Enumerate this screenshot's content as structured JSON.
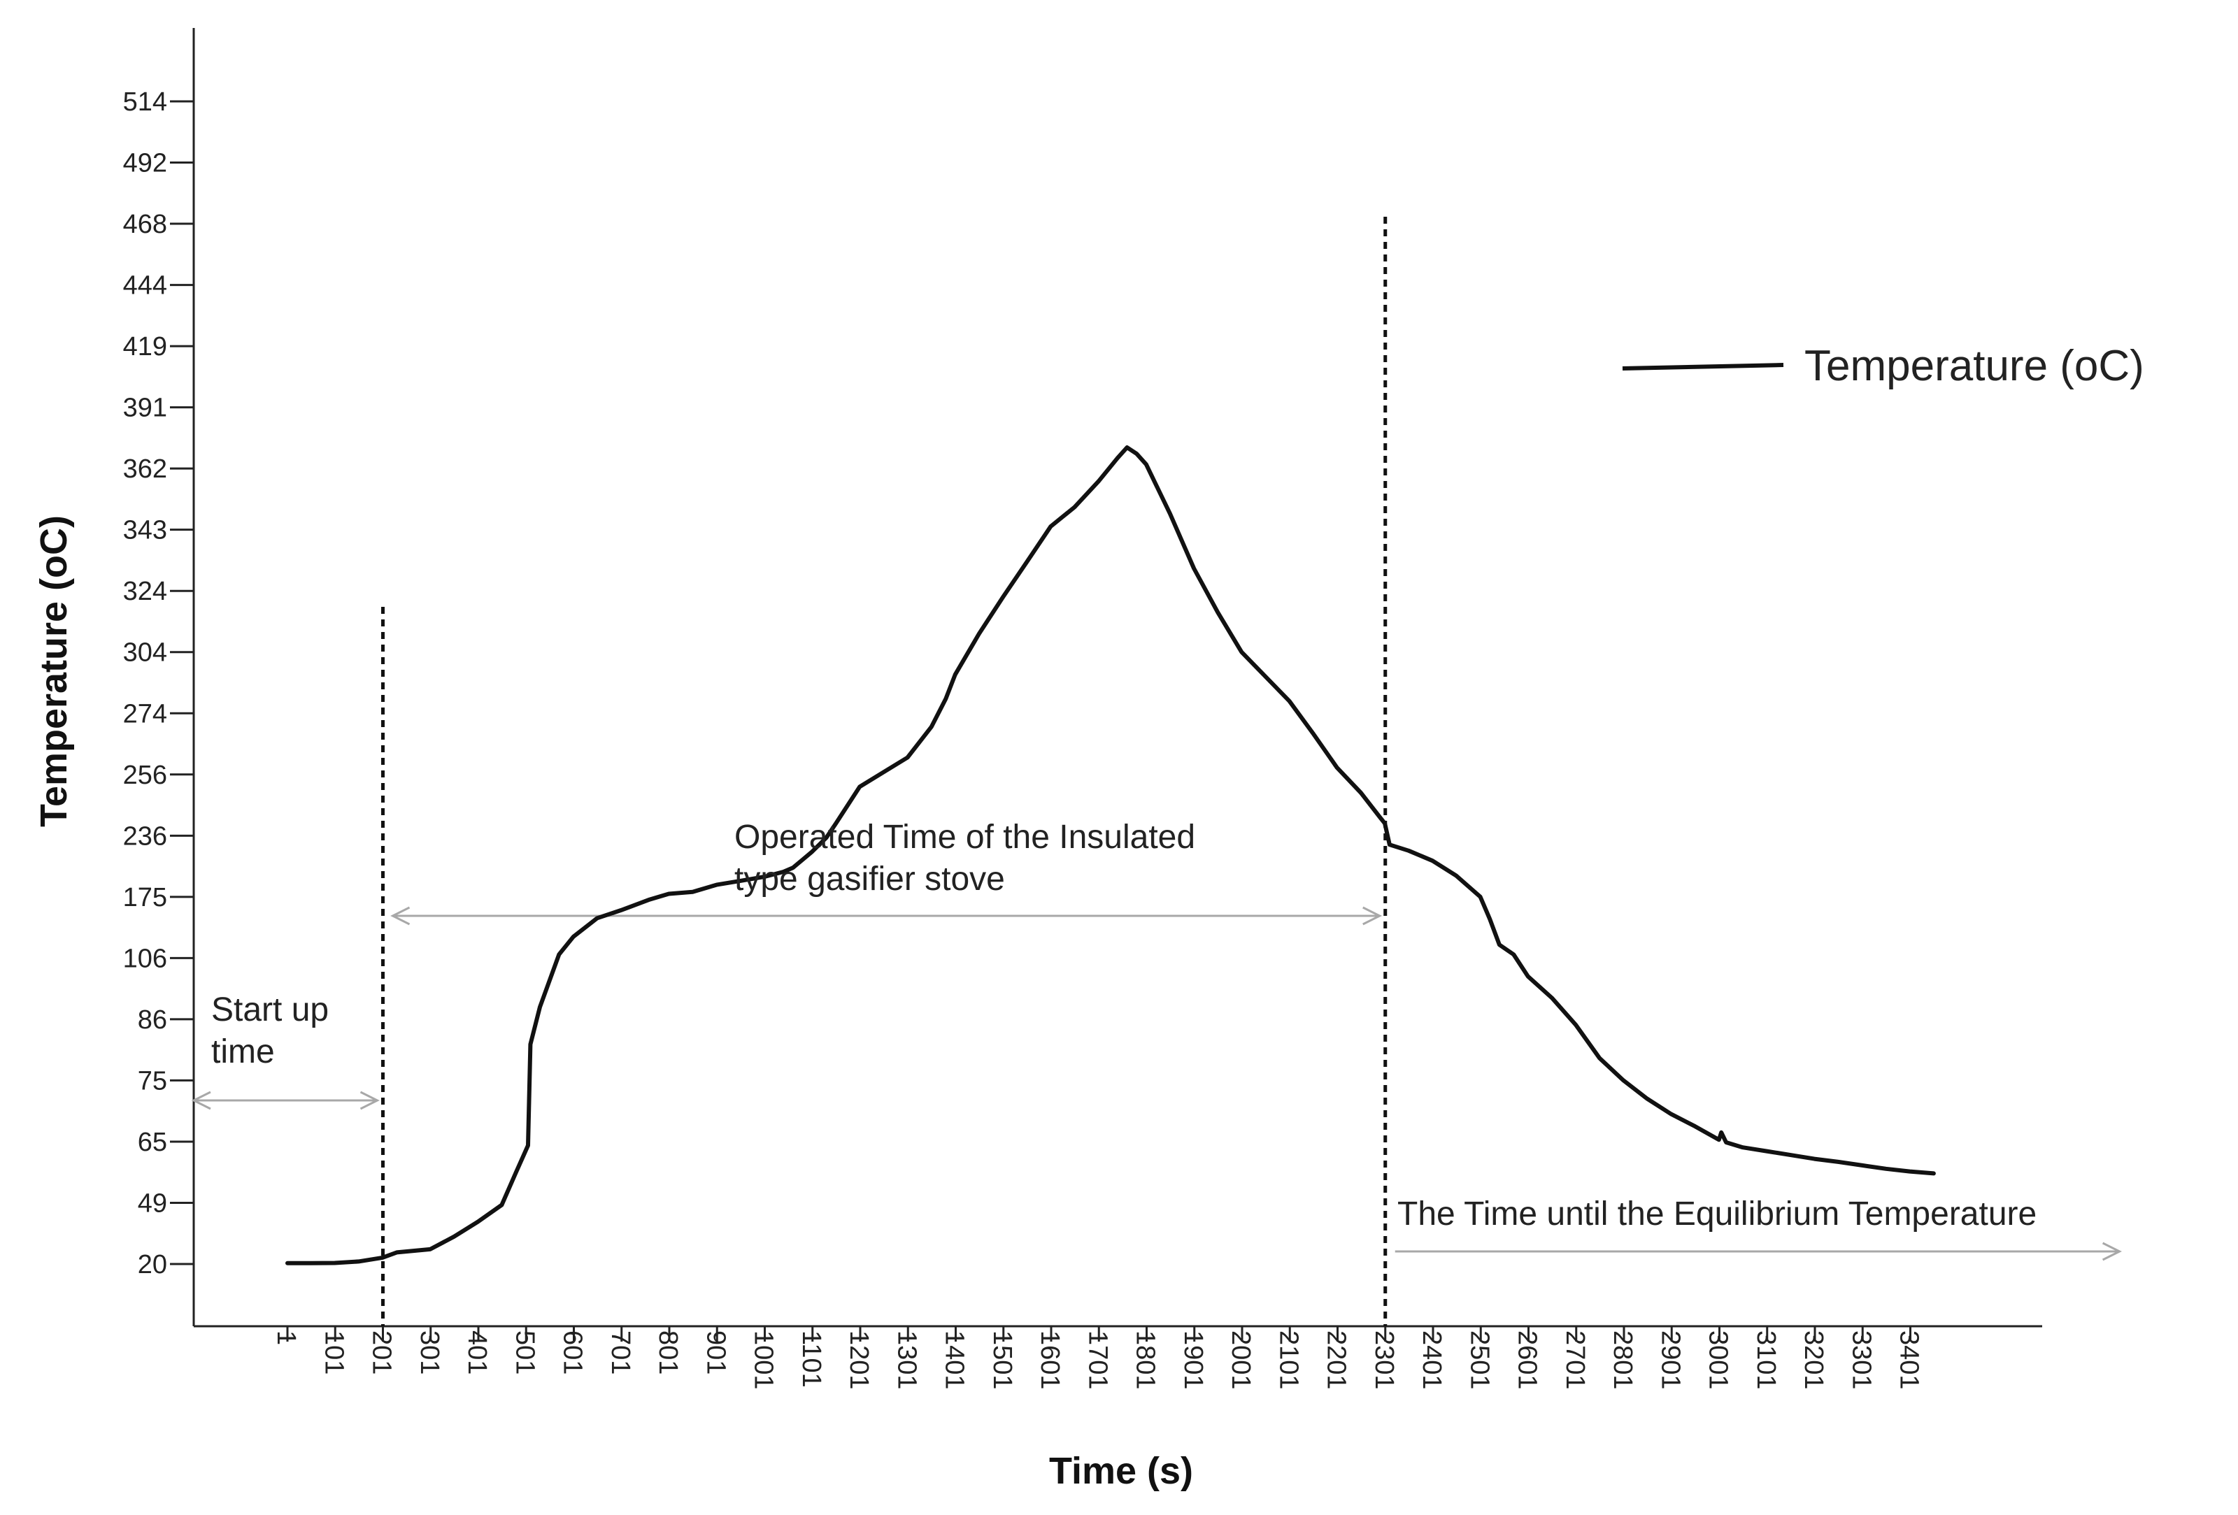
{
  "chart_data": {
    "type": "line",
    "title": "",
    "xlabel": "Time (s)",
    "ylabel": "Temperature (oC)",
    "x_ticks": [
      "1",
      "101",
      "201",
      "301",
      "401",
      "501",
      "601",
      "701",
      "801",
      "901",
      "1001",
      "1101",
      "1201",
      "1301",
      "1401",
      "1501",
      "1601",
      "1701",
      "1801",
      "1901",
      "2001",
      "2101",
      "2201",
      "2301",
      "2401",
      "2501",
      "2601",
      "2701",
      "2801",
      "2901",
      "3001",
      "3101",
      "3201",
      "3301",
      "3401"
    ],
    "y_ticks": [
      "20",
      "49",
      "65",
      "75",
      "86",
      "106",
      "175",
      "236",
      "256",
      "274",
      "304",
      "324",
      "343",
      "362",
      "391",
      "419",
      "444",
      "468",
      "492",
      "514"
    ],
    "xlim": [
      1,
      3601
    ],
    "legend": {
      "position": "right",
      "entries": [
        "Temperature (oC)"
      ]
    },
    "grid": false,
    "annotations": [
      {
        "text": [
          "Start up",
          "time"
        ],
        "from_x": 1,
        "to_x": 201
      },
      {
        "text": [
          "Operated Time of the Insulated",
          "type gasifier stove"
        ],
        "from_x": 201,
        "to_x": 2301
      },
      {
        "text": [
          "The Time until the Equilibrium Temperature"
        ],
        "from_x": 2301,
        "to_x": 3851
      }
    ],
    "reference_lines_x": [
      201,
      2301
    ],
    "series": [
      {
        "name": "Temperature (oC)",
        "color": "#111111",
        "x": [
          1,
          50,
          100,
          150,
          200,
          230,
          300,
          350,
          400,
          450,
          480,
          505,
          510,
          530,
          570,
          600,
          650,
          700,
          740,
          760,
          800,
          850,
          900,
          950,
          1000,
          1040,
          1060,
          1100,
          1130,
          1150,
          1200,
          1300,
          1350,
          1380,
          1400,
          1450,
          1500,
          1550,
          1600,
          1650,
          1700,
          1740,
          1760,
          1780,
          1800,
          1850,
          1900,
          1950,
          2000,
          2050,
          2100,
          2150,
          2200,
          2250,
          2290,
          2300,
          2310,
          2350,
          2400,
          2450,
          2500,
          2520,
          2540,
          2570,
          2600,
          2650,
          2700,
          2750,
          2800,
          2850,
          2900,
          2950,
          3000,
          3005,
          3015,
          3050,
          3100,
          3150,
          3200,
          3250,
          3300,
          3350,
          3400,
          3450
        ],
        "y": [
          20.4,
          20.4,
          20.5,
          21.2,
          23,
          25.5,
          27,
          33,
          40,
          48,
          57,
          64,
          81.5,
          90,
          110,
          130,
          151,
          160,
          168,
          172,
          178,
          180,
          187,
          191,
          195,
          200,
          204,
          220,
          234,
          240,
          252,
          261,
          270,
          281,
          293,
          310,
          322,
          333,
          344,
          350,
          358,
          367,
          372,
          369,
          364,
          348,
          331,
          317,
          304,
          292,
          280,
          268,
          258,
          250,
          242,
          240,
          227,
          221,
          211,
          196,
          175,
          150,
          121,
          110,
          100,
          93,
          85,
          79,
          75,
          72,
          69.5,
          67.5,
          65.3,
          66.5,
          64.8,
          63.5,
          62.5,
          61.5,
          60.5,
          59.7,
          58.8,
          57.9,
          57.2,
          56.7
        ]
      }
    ]
  }
}
